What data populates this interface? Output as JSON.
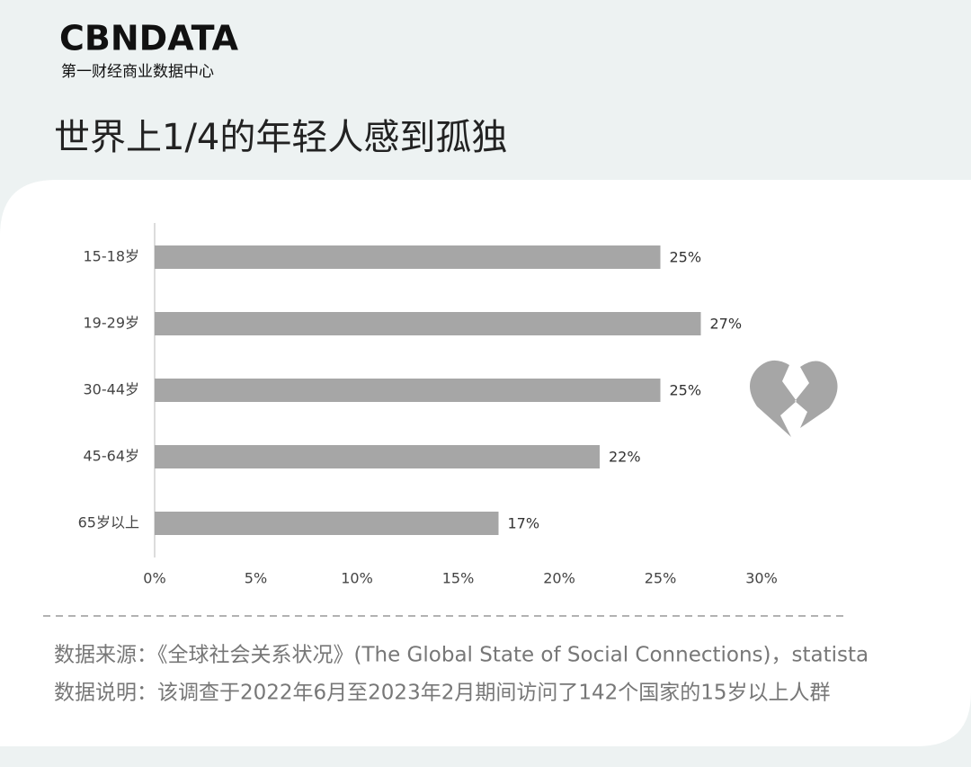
{
  "brand": {
    "name": "CBNDATA",
    "tagline": "第一财经商业数据中心"
  },
  "chart_data": {
    "type": "hbar",
    "title": "世界上1/4的年轻人感到孤独",
    "categories": [
      "15-18岁",
      "19-29岁",
      "30-44岁",
      "45-64岁",
      "65岁以上"
    ],
    "values": [
      25,
      27,
      25,
      22,
      17
    ],
    "value_labels": [
      "25%",
      "27%",
      "25%",
      "22%",
      "17%"
    ],
    "color": "#a6a6a6",
    "xlim": [
      0,
      30
    ],
    "xticks": [
      {
        "value": 0,
        "label": "0%"
      },
      {
        "value": 5,
        "label": "5%"
      },
      {
        "value": 10,
        "label": "10%"
      },
      {
        "value": 15,
        "label": "15%"
      },
      {
        "value": 20,
        "label": "20%"
      },
      {
        "value": 25,
        "label": "25%"
      },
      {
        "value": 30,
        "label": "30%"
      }
    ],
    "grid": false
  },
  "notes": {
    "source": "数据来源：《全球社会关系状况》(The Global State of Social Connections)，statista",
    "description": "数据说明：该调查于2022年6月至2023年2月期间访问了142个国家的15岁以上人群"
  }
}
